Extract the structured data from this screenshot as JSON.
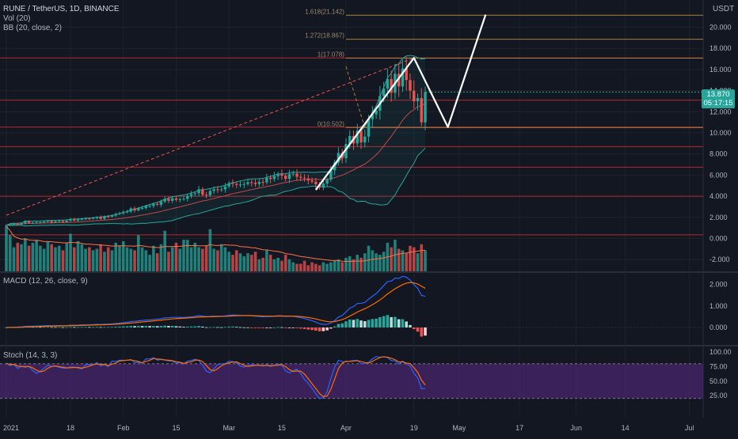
{
  "header": {
    "title": "RUNE / TetherUS, 1D, BINANCE",
    "currency": "USDT",
    "indicators": [
      "Vol (20)",
      "BB (20, close, 2)"
    ]
  },
  "price_badge": {
    "value": "13.870",
    "countdown": "05:17:15",
    "color": "#26a69a"
  },
  "colors": {
    "background": "#131722",
    "up": "#26a69a",
    "down": "#ef5350",
    "resistance": "#b22833",
    "fib": "#a9813a",
    "bb": "#26a69a",
    "macd": "#2962ff",
    "signal": "#ff6d00",
    "stoch_k": "#2962ff",
    "stoch_d": "#ff6d00",
    "stoch_band": "#5b2a86"
  },
  "chart_data": [
    {
      "type": "candlestick",
      "title": "RUNE / TetherUS, 1D, BINANCE",
      "y_axis_ticks": [
        -2.0,
        0.0,
        2.0,
        4.0,
        6.0,
        8.0,
        10.0,
        12.0,
        14.0,
        16.0,
        18.0,
        20.0
      ],
      "y_axis_labels": [
        "-2.000",
        "0.000",
        "2.000",
        "4.000",
        "6.000",
        "8.000",
        "10.000",
        "12.000",
        "14.000",
        "16.000",
        "18.000",
        "20.000"
      ],
      "ylim": [
        -2.8,
        21.6
      ],
      "x_ticks": [
        "2021",
        "18",
        "Feb",
        "15",
        "Mar",
        "15",
        "Apr",
        "19",
        "May",
        "17",
        "Jun",
        "14",
        "Jul"
      ],
      "last_price": 13.87,
      "horizontal_levels": [
        17.1,
        13.1,
        10.55,
        8.7,
        6.75,
        4.0,
        0.35
      ],
      "fib_levels": [
        {
          "ratio": "1.618",
          "value": 21.142,
          "label": "1.618(21.142)"
        },
        {
          "ratio": "1.272",
          "value": 18.867,
          "label": "1.272(18.867)"
        },
        {
          "ratio": "1",
          "value": 17.078,
          "label": "1(17.078)"
        },
        {
          "ratio": "0",
          "value": 10.502,
          "label": "0(10.502)"
        }
      ],
      "pattern_path": [
        {
          "date": "2021-03-24",
          "price": 4.6
        },
        {
          "date": "2021-04-19",
          "price": 17.1
        },
        {
          "date": "2021-04-28",
          "price": 10.55
        },
        {
          "date": "2021-05-08",
          "price": 21.2
        }
      ],
      "trendline": [
        {
          "date": "2021-01-01",
          "price": 2.2
        },
        {
          "date": "2021-04-19",
          "price": 17.1
        }
      ],
      "fib_anchor_line": [
        {
          "date": "2021-04-01",
          "price": 16.3
        },
        {
          "date": "2021-04-06",
          "price": 10.502
        }
      ],
      "closes": [
        1.27,
        1.36,
        1.4,
        1.34,
        1.45,
        1.64,
        1.48,
        1.5,
        1.55,
        1.55,
        1.6,
        1.65,
        1.52,
        1.63,
        1.66,
        1.56,
        1.69,
        1.85,
        1.7,
        1.81,
        1.85,
        1.89,
        1.87,
        1.93,
        2.04,
        1.86,
        2.09,
        2.07,
        2.18,
        2.32,
        2.4,
        2.53,
        2.55,
        2.85,
        2.66,
        2.88,
        2.89,
        3.08,
        3.08,
        3.27,
        3.19,
        3.5,
        3.75,
        3.57,
        3.79,
        3.66,
        3.72,
        3.75,
        4.04,
        4.21,
        4.29,
        4.65,
        4.14,
        4.09,
        4.5,
        4.66,
        4.61,
        4.65,
        4.93,
        5.24,
        5.17,
        5.08,
        5.11,
        5.16,
        5.33,
        5.28,
        5.16,
        5.35,
        5.31,
        5.75,
        5.63,
        5.91,
        6.11,
        5.94,
        5.65,
        6.1,
        6.15,
        5.84,
        5.75,
        5.68,
        5.5,
        5.38,
        5.13,
        4.85,
        5.2,
        5.58,
        6.45,
        7.2,
        8.1,
        7.6,
        8.95,
        9.7,
        9.0,
        10.2,
        9.1,
        9.65,
        11.3,
        11.75,
        12.1,
        13.5,
        14.2,
        15.1,
        13.8,
        15.6,
        14.4,
        16.1,
        15.0,
        14.0,
        13.0,
        13.3,
        11.0,
        13.87
      ],
      "volume": [
        150,
        120,
        80,
        95,
        90,
        110,
        85,
        95,
        105,
        85,
        75,
        100,
        90,
        80,
        85,
        70,
        95,
        125,
        80,
        100,
        90,
        75,
        80,
        70,
        75,
        90,
        65,
        80,
        70,
        95,
        85,
        100,
        80,
        75,
        70,
        120,
        80,
        70,
        55,
        85,
        60,
        90,
        135,
        65,
        80,
        95,
        75,
        105,
        105,
        80,
        95,
        80,
        75,
        85,
        140,
        75,
        70,
        90,
        80,
        65,
        55,
        70,
        60,
        50,
        60,
        55,
        65,
        40,
        45,
        70,
        55,
        40,
        45,
        35,
        55,
        40,
        30,
        25,
        25,
        35,
        20,
        30,
        25,
        20,
        30,
        25,
        30,
        35,
        40,
        30,
        45,
        50,
        40,
        55,
        45,
        60,
        85,
        70,
        60,
        55,
        65,
        95,
        80,
        105,
        75,
        70,
        60,
        85,
        80,
        60,
        90,
        70
      ],
      "bollinger": {
        "period": 20,
        "mult": 2
      },
      "volume_ma_period": 20
    },
    {
      "type": "line",
      "title": "MACD (12, 26, close, 9)",
      "y_axis_ticks": [
        0.0,
        1.0,
        2.0
      ],
      "y_axis_labels": [
        "0.000",
        "1.000",
        "2.000"
      ],
      "ylim": [
        -0.6,
        2.5
      ],
      "series": [
        {
          "name": "MACD"
        },
        {
          "name": "Signal"
        },
        {
          "name": "Histogram"
        }
      ]
    },
    {
      "type": "line",
      "title": "Stoch (14, 3, 3)",
      "y_axis_ticks": [
        25.0,
        50.0,
        75.0,
        100.0
      ],
      "y_axis_labels": [
        "25.00",
        "50.00",
        "75.00",
        "100.00"
      ],
      "ylim": [
        10,
        104
      ],
      "band": [
        20,
        80
      ],
      "series": [
        {
          "name": "%K"
        },
        {
          "name": "%D"
        }
      ]
    }
  ]
}
